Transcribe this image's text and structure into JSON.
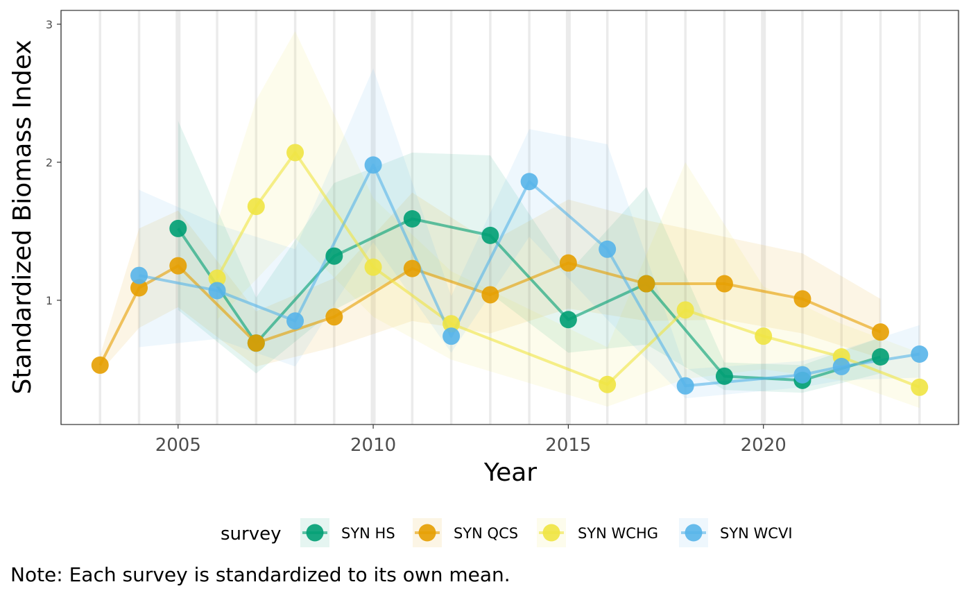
{
  "chart_data": {
    "type": "line",
    "xlabel": "Year",
    "ylabel": "Standardized Biomass Index",
    "xlim": [
      2002,
      2025
    ],
    "ylim": [
      0.1,
      3.1
    ],
    "x_ticks": [
      2005,
      2010,
      2015,
      2020
    ],
    "y_ticks": [
      1,
      2,
      3
    ],
    "x_tick_labels": [
      "2005",
      "2010",
      "2015",
      "2020"
    ],
    "y_tick_labels": [
      "1",
      "2",
      "3"
    ],
    "legend": {
      "title": "survey",
      "position": "bottom"
    },
    "note": "Note: Each survey is standardized to its own mean.",
    "series": [
      {
        "name": "SYN HS",
        "color": "#009E73",
        "points": [
          {
            "x": 2005,
            "y": 1.52,
            "lo": 0.93,
            "hi": 2.3
          },
          {
            "x": 2007,
            "y": 0.69,
            "lo": 0.47,
            "hi": 1.02
          },
          {
            "x": 2009,
            "y": 1.32,
            "lo": 0.93,
            "hi": 1.85
          },
          {
            "x": 2011,
            "y": 1.59,
            "lo": 1.22,
            "hi": 2.07
          },
          {
            "x": 2013,
            "y": 1.47,
            "lo": 1.05,
            "hi": 2.05
          },
          {
            "x": 2015,
            "y": 0.86,
            "lo": 0.62,
            "hi": 1.2
          },
          {
            "x": 2017,
            "y": 1.12,
            "lo": 0.68,
            "hi": 1.82
          },
          {
            "x": 2019,
            "y": 0.45,
            "lo": 0.35,
            "hi": 0.55
          },
          {
            "x": 2021,
            "y": 0.42,
            "lo": 0.33,
            "hi": 0.53
          },
          {
            "x": 2023,
            "y": 0.59,
            "lo": 0.47,
            "hi": 0.73
          }
        ]
      },
      {
        "name": "SYN QCS",
        "color": "#E69F00",
        "points": [
          {
            "x": 2003,
            "y": 0.53,
            "lo": 0.48,
            "hi": 0.6
          },
          {
            "x": 2004,
            "y": 1.09,
            "lo": 0.8,
            "hi": 1.52
          },
          {
            "x": 2005,
            "y": 1.25,
            "lo": 0.95,
            "hi": 1.65
          },
          {
            "x": 2007,
            "y": 0.69,
            "lo": 0.52,
            "hi": 0.92
          },
          {
            "x": 2009,
            "y": 0.88,
            "lo": 0.66,
            "hi": 1.16
          },
          {
            "x": 2011,
            "y": 1.23,
            "lo": 0.85,
            "hi": 1.78
          },
          {
            "x": 2013,
            "y": 1.04,
            "lo": 0.76,
            "hi": 1.42
          },
          {
            "x": 2015,
            "y": 1.27,
            "lo": 0.94,
            "hi": 1.73
          },
          {
            "x": 2017,
            "y": 1.12,
            "lo": 0.85,
            "hi": 1.58
          },
          {
            "x": 2019,
            "y": 1.12,
            "lo": 0.86,
            "hi": 1.46
          },
          {
            "x": 2021,
            "y": 1.01,
            "lo": 0.76,
            "hi": 1.34
          },
          {
            "x": 2023,
            "y": 0.77,
            "lo": 0.58,
            "hi": 1.01
          }
        ]
      },
      {
        "name": "SYN WCHG",
        "color": "#F0E442",
        "points": [
          {
            "x": 2006,
            "y": 1.16,
            "lo": 0.86,
            "hi": 1.56
          },
          {
            "x": 2007,
            "y": 1.68,
            "lo": 1.15,
            "hi": 2.45
          },
          {
            "x": 2008,
            "y": 2.07,
            "lo": 1.45,
            "hi": 2.95
          },
          {
            "x": 2010,
            "y": 1.24,
            "lo": 0.88,
            "hi": 1.74
          },
          {
            "x": 2012,
            "y": 0.83,
            "lo": 0.57,
            "hi": 1.21
          },
          {
            "x": 2016,
            "y": 0.39,
            "lo": 0.23,
            "hi": 0.66
          },
          {
            "x": 2018,
            "y": 0.93,
            "lo": 0.43,
            "hi": 2.0
          },
          {
            "x": 2020,
            "y": 0.74,
            "lo": 0.5,
            "hi": 1.1
          },
          {
            "x": 2022,
            "y": 0.59,
            "lo": 0.42,
            "hi": 0.83
          },
          {
            "x": 2024,
            "y": 0.37,
            "lo": 0.22,
            "hi": 0.62
          }
        ]
      },
      {
        "name": "SYN WCVI",
        "color": "#56B4E9",
        "points": [
          {
            "x": 2004,
            "y": 1.18,
            "lo": 0.66,
            "hi": 1.8
          },
          {
            "x": 2006,
            "y": 1.07,
            "lo": 0.72,
            "hi": 1.55
          },
          {
            "x": 2008,
            "y": 0.85,
            "lo": 0.52,
            "hi": 1.37
          },
          {
            "x": 2010,
            "y": 1.98,
            "lo": 1.42,
            "hi": 2.68
          },
          {
            "x": 2012,
            "y": 0.74,
            "lo": 0.62,
            "hi": 1.03
          },
          {
            "x": 2014,
            "y": 1.86,
            "lo": 1.46,
            "hi": 2.24
          },
          {
            "x": 2016,
            "y": 1.37,
            "lo": 0.86,
            "hi": 2.13
          },
          {
            "x": 2018,
            "y": 0.38,
            "lo": 0.29,
            "hi": 0.5
          },
          {
            "x": 2021,
            "y": 0.46,
            "lo": 0.37,
            "hi": 0.56
          },
          {
            "x": 2022,
            "y": 0.52,
            "lo": 0.42,
            "hi": 0.64
          },
          {
            "x": 2024,
            "y": 0.61,
            "lo": 0.44,
            "hi": 0.82
          }
        ]
      }
    ]
  }
}
